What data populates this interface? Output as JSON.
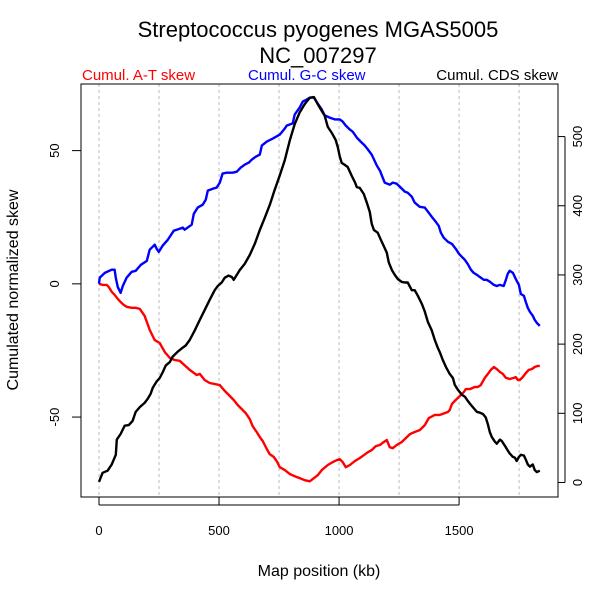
{
  "chart_data": {
    "type": "line",
    "title": "Streptococcus pyogenes MGAS5005",
    "subtitle": "NC_007297",
    "xlabel": "Map position (kb)",
    "ylabel": "Cumulated normalized skew",
    "ylabel_right": "",
    "xlim": [
      -75,
      1912
    ],
    "ylim": [
      -80,
      75
    ],
    "ylim_right": [
      -21,
      576
    ],
    "x_ticks": [
      0,
      500,
      1000,
      1500
    ],
    "x_tick_labels": [
      "0",
      "500",
      "1000",
      "1500"
    ],
    "x_grid": [
      0,
      250,
      500,
      750,
      1000,
      1250,
      1500,
      1750
    ],
    "y_ticks": [
      -50,
      0,
      50
    ],
    "y_tick_labels": [
      "-50",
      "0",
      "50"
    ],
    "y_right_ticks": [
      0,
      100,
      200,
      300,
      400,
      500
    ],
    "y_right_tick_labels": [
      "0",
      "100",
      "200",
      "300",
      "400",
      "500"
    ],
    "grid": "vertical dotted",
    "legend_position": "top",
    "series": [
      {
        "name": "Cumul. A-T skew",
        "color": "#ff0000",
        "axis": "left",
        "x": [
          0,
          15,
          32,
          40,
          53,
          65,
          78,
          90,
          103,
          115,
          136,
          153,
          170,
          190,
          211,
          232,
          253,
          274,
          295,
          315,
          336,
          378,
          407,
          420,
          440,
          461,
          503,
          524,
          545,
          561,
          578,
          595,
          611,
          628,
          640,
          657,
          670,
          682,
          699,
          711,
          728,
          740,
          753,
          774,
          795,
          815,
          836,
          857,
          878,
          890,
          911,
          928,
          953,
          974,
          990,
          1003,
          1015,
          1028,
          1045,
          1066,
          1086,
          1103,
          1120,
          1136,
          1153,
          1170,
          1186,
          1199,
          1211,
          1224,
          1240,
          1261,
          1278,
          1295,
          1315,
          1336,
          1357,
          1374,
          1399,
          1420,
          1440,
          1453,
          1461,
          1470,
          1486,
          1503,
          1520,
          1528,
          1545,
          1565,
          1578,
          1590,
          1607,
          1620,
          1632,
          1645,
          1657,
          1670,
          1682,
          1695,
          1711,
          1728,
          1736,
          1745,
          1753,
          1765,
          1778,
          1790,
          1803,
          1815,
          1828,
          1836
        ],
        "values": [
          0,
          -0.4,
          -0.4,
          -1.1,
          -3.0,
          -4.1,
          -5.6,
          -6.8,
          -7.9,
          -8.6,
          -9.0,
          -9.0,
          -9.4,
          -12.0,
          -17.3,
          -21.1,
          -22.2,
          -25.6,
          -27.8,
          -28.6,
          -28.9,
          -32.3,
          -34.2,
          -33.8,
          -36.1,
          -37.2,
          -38.0,
          -40.2,
          -42.1,
          -43.6,
          -45.5,
          -47.0,
          -48.5,
          -50.8,
          -53.4,
          -55.6,
          -57.5,
          -59.0,
          -62.0,
          -63.9,
          -65.0,
          -66.5,
          -68.8,
          -69.9,
          -71.4,
          -72.2,
          -72.9,
          -73.7,
          -74.1,
          -73.3,
          -71.8,
          -69.9,
          -68.0,
          -66.9,
          -66.2,
          -65.8,
          -66.9,
          -68.8,
          -68.0,
          -66.5,
          -65.4,
          -64.3,
          -63.2,
          -62.4,
          -60.9,
          -60.5,
          -59.4,
          -58.6,
          -61.3,
          -61.7,
          -60.5,
          -59.4,
          -57.9,
          -56.4,
          -55.6,
          -54.9,
          -53.0,
          -50.4,
          -49.2,
          -49.2,
          -48.5,
          -48.1,
          -47.4,
          -45.1,
          -43.6,
          -42.1,
          -40.6,
          -39.5,
          -39.5,
          -38.7,
          -38.7,
          -38.0,
          -35.3,
          -33.8,
          -32.3,
          -31.2,
          -32.0,
          -33.1,
          -33.8,
          -35.3,
          -35.7,
          -35.3,
          -35.0,
          -36.1,
          -36.1,
          -35.0,
          -33.5,
          -32.3,
          -32.0,
          -31.2,
          -30.8,
          -30.8
        ]
      },
      {
        "name": "Cumul. G-C skew",
        "color": "#0000ff",
        "axis": "left",
        "x": [
          0,
          3,
          24,
          53,
          65,
          70,
          78,
          90,
          99,
          115,
          136,
          153,
          174,
          199,
          211,
          232,
          240,
          249,
          265,
          286,
          311,
          336,
          349,
          357,
          386,
          395,
          411,
          432,
          445,
          453,
          474,
          490,
          503,
          515,
          532,
          557,
          574,
          590,
          607,
          624,
          636,
          653,
          670,
          678,
          699,
          724,
          753,
          774,
          782,
          807,
          815,
          836,
          849,
          865,
          878,
          895,
          911,
          928,
          940,
          961,
          982,
          1003,
          1015,
          1028,
          1045,
          1057,
          1074,
          1090,
          1107,
          1120,
          1136,
          1157,
          1170,
          1190,
          1211,
          1224,
          1240,
          1257,
          1274,
          1286,
          1303,
          1315,
          1336,
          1357,
          1370,
          1386,
          1403,
          1415,
          1424,
          1436,
          1453,
          1470,
          1486,
          1499,
          1511,
          1524,
          1536,
          1549,
          1561,
          1574,
          1586,
          1603,
          1615,
          1628,
          1645,
          1657,
          1670,
          1686,
          1695,
          1703,
          1711,
          1724,
          1736,
          1749,
          1757,
          1770,
          1778,
          1786,
          1795,
          1807,
          1815,
          1824,
          1836
        ],
        "values": [
          0,
          2.3,
          4.1,
          5.3,
          5.3,
          2.3,
          -1.1,
          -3.4,
          -0.8,
          2.3,
          4.5,
          4.9,
          7.1,
          8.6,
          12.8,
          14.7,
          13.2,
          12.0,
          14.3,
          16.5,
          19.9,
          20.7,
          21.1,
          20.3,
          22.2,
          26.3,
          28.6,
          29.7,
          31.6,
          35.0,
          35.7,
          36.1,
          38.0,
          41.4,
          41.7,
          41.7,
          42.1,
          43.6,
          44.7,
          45.5,
          46.6,
          47.7,
          48.5,
          51.9,
          53.4,
          54.5,
          56.0,
          58.3,
          59.4,
          60.2,
          63.5,
          66.2,
          68.4,
          69.2,
          69.9,
          69.9,
          67.7,
          65.4,
          63.2,
          62.4,
          61.7,
          61.7,
          60.9,
          59.4,
          57.9,
          57.1,
          54.9,
          53.4,
          51.9,
          50.4,
          48.5,
          44.4,
          42.5,
          38.0,
          37.2,
          38.0,
          37.6,
          36.1,
          34.6,
          34.2,
          32.7,
          30.5,
          28.9,
          28.6,
          27.1,
          25.2,
          23.3,
          21.8,
          19.2,
          17.3,
          15.8,
          15.0,
          13.2,
          11.3,
          10.2,
          9.0,
          7.5,
          5.3,
          4.1,
          3.4,
          2.6,
          1.5,
          1.5,
          0.8,
          -0.4,
          -0.8,
          -0.4,
          -0.8,
          1.5,
          3.8,
          4.9,
          4.1,
          1.9,
          -0.4,
          -3.8,
          -4.5,
          -6.8,
          -9.0,
          -10.5,
          -12.0,
          -13.5,
          -14.7,
          -15.8
        ]
      },
      {
        "name": "Cumul. CDS skew",
        "color": "#000000",
        "axis": "right",
        "x": [
          0,
          15,
          36,
          53,
          70,
          74,
          90,
          107,
          124,
          140,
          153,
          170,
          190,
          203,
          215,
          224,
          240,
          253,
          265,
          278,
          295,
          307,
          328,
          349,
          361,
          378,
          399,
          420,
          440,
          461,
          482,
          495,
          511,
          524,
          540,
          553,
          561,
          574,
          586,
          607,
          628,
          649,
          670,
          690,
          711,
          732,
          753,
          774,
          795,
          815,
          836,
          857,
          878,
          895,
          911,
          928,
          940,
          953,
          970,
          986,
          995,
          1003,
          1011,
          1024,
          1036,
          1053,
          1066,
          1074,
          1086,
          1103,
          1115,
          1128,
          1136,
          1145,
          1161,
          1174,
          1186,
          1199,
          1207,
          1220,
          1232,
          1245,
          1261,
          1274,
          1286,
          1303,
          1315,
          1328,
          1345,
          1357,
          1370,
          1386,
          1399,
          1411,
          1420,
          1432,
          1445,
          1461,
          1474,
          1482,
          1495,
          1511,
          1524,
          1536,
          1545,
          1557,
          1574,
          1586,
          1599,
          1611,
          1620,
          1628,
          1636,
          1649,
          1657,
          1670,
          1678,
          1691,
          1703,
          1711,
          1724,
          1732,
          1740,
          1749,
          1757,
          1770,
          1778,
          1786,
          1795,
          1807,
          1815,
          1824,
          1836
        ],
        "values": [
          1,
          14,
          17,
          26,
          40,
          62,
          70,
          82,
          83,
          89,
          102,
          109,
          115,
          121,
          128,
          137,
          146,
          151,
          159,
          169,
          174,
          182,
          189,
          195,
          198,
          206,
          220,
          235,
          249,
          264,
          278,
          284,
          289,
          296,
          299,
          297,
          293,
          300,
          307,
          316,
          329,
          345,
          365,
          382,
          401,
          423,
          444,
          466,
          495,
          518,
          535,
          547,
          556,
          557,
          547,
          537,
          530,
          514,
          505,
          495,
          484,
          471,
          462,
          459,
          456,
          443,
          434,
          427,
          426,
          417,
          405,
          391,
          374,
          365,
          361,
          351,
          342,
          332,
          318,
          307,
          300,
          294,
          290,
          289,
          289,
          278,
          278,
          270,
          258,
          247,
          232,
          220,
          206,
          195,
          188,
          177,
          167,
          157,
          151,
          141,
          134,
          127,
          124,
          118,
          114,
          109,
          102,
          101,
          99,
          94,
          84,
          73,
          66,
          59,
          56,
          62,
          60,
          53,
          46,
          42,
          37,
          36,
          31,
          37,
          40,
          39,
          33,
          26,
          23,
          26,
          18,
          15,
          17
        ]
      }
    ]
  }
}
